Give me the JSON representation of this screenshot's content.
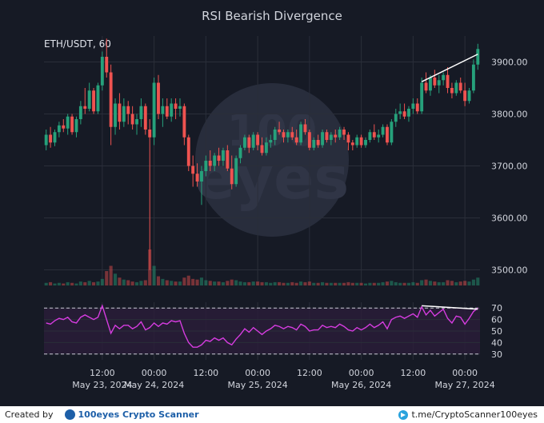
{
  "chart_data": {
    "type": "candlestick",
    "title": "RSI Bearish Divergence",
    "symbol_label": "ETH/USDT, 60",
    "price_axis": {
      "ylim": [
        3470,
        3950
      ],
      "ticks": [
        3500,
        3600,
        3700,
        3800,
        3900
      ],
      "tick_labels": [
        "3500.00",
        "3600.00",
        "3700.00",
        "3800.00",
        "3900.00"
      ]
    },
    "rsi_axis": {
      "ylim": [
        25,
        75
      ],
      "ticks": [
        30,
        40,
        50,
        60,
        70
      ],
      "tick_labels": [
        "30",
        "40",
        "50",
        "60",
        "70"
      ],
      "dashed_levels": [
        30,
        70
      ]
    },
    "x_axis": {
      "ticks": [
        {
          "index": 13,
          "time": "12:00",
          "date": "May 23, 2024"
        },
        {
          "index": 25,
          "time": "00:00",
          "date": "May 24, 2024"
        },
        {
          "index": 37,
          "time": "12:00",
          "date": ""
        },
        {
          "index": 49,
          "time": "00:00",
          "date": "May 25, 2024"
        },
        {
          "index": 61,
          "time": "12:00",
          "date": ""
        },
        {
          "index": 73,
          "time": "00:00",
          "date": "May 26, 2024"
        },
        {
          "index": 85,
          "time": "12:00",
          "date": ""
        },
        {
          "index": 97,
          "time": "00:00",
          "date": "May 27, 2024"
        }
      ]
    },
    "candles": [
      [
        3740,
        3770,
        3730,
        3760
      ],
      [
        3760,
        3775,
        3735,
        3745
      ],
      [
        3745,
        3770,
        3738,
        3765
      ],
      [
        3765,
        3785,
        3755,
        3778
      ],
      [
        3778,
        3790,
        3765,
        3772
      ],
      [
        3772,
        3800,
        3760,
        3795
      ],
      [
        3795,
        3800,
        3760,
        3765
      ],
      [
        3765,
        3795,
        3755,
        3790
      ],
      [
        3790,
        3825,
        3780,
        3815
      ],
      [
        3815,
        3850,
        3800,
        3810
      ],
      [
        3810,
        3860,
        3805,
        3845
      ],
      [
        3845,
        3850,
        3800,
        3805
      ],
      [
        3805,
        3860,
        3800,
        3855
      ],
      [
        3855,
        3920,
        3845,
        3910
      ],
      [
        3910,
        3945,
        3870,
        3880
      ],
      [
        3880,
        3895,
        3740,
        3775
      ],
      [
        3775,
        3830,
        3760,
        3820
      ],
      [
        3820,
        3840,
        3770,
        3785
      ],
      [
        3785,
        3830,
        3775,
        3815
      ],
      [
        3815,
        3825,
        3780,
        3800
      ],
      [
        3800,
        3815,
        3770,
        3780
      ],
      [
        3780,
        3800,
        3760,
        3790
      ],
      [
        3790,
        3830,
        3775,
        3815
      ],
      [
        3815,
        3820,
        3760,
        3770
      ],
      [
        3770,
        3790,
        3500,
        3755
      ],
      [
        3755,
        3870,
        3740,
        3860
      ],
      [
        3860,
        3875,
        3790,
        3800
      ],
      [
        3800,
        3830,
        3775,
        3815
      ],
      [
        3815,
        3830,
        3790,
        3795
      ],
      [
        3795,
        3830,
        3785,
        3820
      ],
      [
        3820,
        3830,
        3790,
        3810
      ],
      [
        3810,
        3830,
        3795,
        3815
      ],
      [
        3815,
        3820,
        3740,
        3755
      ],
      [
        3755,
        3760,
        3690,
        3700
      ],
      [
        3700,
        3720,
        3660,
        3685
      ],
      [
        3685,
        3705,
        3660,
        3670
      ],
      [
        3670,
        3700,
        3625,
        3690
      ],
      [
        3690,
        3720,
        3680,
        3710
      ],
      [
        3710,
        3730,
        3690,
        3700
      ],
      [
        3700,
        3725,
        3690,
        3720
      ],
      [
        3720,
        3735,
        3700,
        3710
      ],
      [
        3710,
        3735,
        3700,
        3730
      ],
      [
        3730,
        3740,
        3690,
        3695
      ],
      [
        3695,
        3720,
        3655,
        3665
      ],
      [
        3665,
        3720,
        3660,
        3715
      ],
      [
        3715,
        3740,
        3705,
        3735
      ],
      [
        3735,
        3760,
        3730,
        3755
      ],
      [
        3755,
        3760,
        3725,
        3735
      ],
      [
        3735,
        3765,
        3730,
        3760
      ],
      [
        3760,
        3765,
        3730,
        3740
      ],
      [
        3740,
        3755,
        3720,
        3725
      ],
      [
        3725,
        3755,
        3720,
        3745
      ],
      [
        3745,
        3760,
        3735,
        3750
      ],
      [
        3750,
        3775,
        3740,
        3770
      ],
      [
        3770,
        3785,
        3760,
        3765
      ],
      [
        3765,
        3770,
        3745,
        3755
      ],
      [
        3755,
        3770,
        3745,
        3765
      ],
      [
        3765,
        3775,
        3750,
        3755
      ],
      [
        3755,
        3770,
        3740,
        3745
      ],
      [
        3745,
        3785,
        3740,
        3780
      ],
      [
        3780,
        3790,
        3760,
        3765
      ],
      [
        3765,
        3770,
        3730,
        3735
      ],
      [
        3735,
        3755,
        3730,
        3750
      ],
      [
        3750,
        3760,
        3735,
        3740
      ],
      [
        3740,
        3770,
        3735,
        3765
      ],
      [
        3765,
        3770,
        3745,
        3750
      ],
      [
        3750,
        3765,
        3740,
        3760
      ],
      [
        3760,
        3770,
        3745,
        3755
      ],
      [
        3755,
        3775,
        3750,
        3770
      ],
      [
        3770,
        3775,
        3750,
        3760
      ],
      [
        3760,
        3765,
        3730,
        3745
      ],
      [
        3745,
        3750,
        3730,
        3740
      ],
      [
        3740,
        3760,
        3735,
        3755
      ],
      [
        3755,
        3760,
        3735,
        3740
      ],
      [
        3740,
        3755,
        3735,
        3750
      ],
      [
        3750,
        3770,
        3745,
        3765
      ],
      [
        3765,
        3780,
        3750,
        3755
      ],
      [
        3755,
        3770,
        3745,
        3760
      ],
      [
        3760,
        3780,
        3755,
        3775
      ],
      [
        3775,
        3780,
        3740,
        3745
      ],
      [
        3745,
        3790,
        3740,
        3785
      ],
      [
        3785,
        3810,
        3775,
        3800
      ],
      [
        3800,
        3820,
        3790,
        3805
      ],
      [
        3805,
        3820,
        3790,
        3795
      ],
      [
        3795,
        3815,
        3785,
        3810
      ],
      [
        3810,
        3830,
        3800,
        3820
      ],
      [
        3820,
        3830,
        3800,
        3805
      ],
      [
        3805,
        3870,
        3800,
        3860
      ],
      [
        3860,
        3880,
        3840,
        3845
      ],
      [
        3845,
        3875,
        3835,
        3870
      ],
      [
        3870,
        3885,
        3850,
        3855
      ],
      [
        3855,
        3875,
        3840,
        3865
      ],
      [
        3865,
        3880,
        3855,
        3875
      ],
      [
        3875,
        3890,
        3840,
        3850
      ],
      [
        3850,
        3860,
        3830,
        3840
      ],
      [
        3840,
        3865,
        3835,
        3860
      ],
      [
        3860,
        3870,
        3840,
        3845
      ],
      [
        3845,
        3860,
        3815,
        3825
      ],
      [
        3825,
        3850,
        3820,
        3845
      ],
      [
        3845,
        3905,
        3840,
        3895
      ],
      [
        3895,
        3935,
        3885,
        3925
      ]
    ],
    "volumes": [
      4,
      5,
      3,
      4,
      3,
      5,
      4,
      3,
      6,
      5,
      7,
      5,
      6,
      10,
      22,
      30,
      18,
      12,
      9,
      8,
      6,
      5,
      7,
      8,
      55,
      30,
      14,
      10,
      8,
      7,
      6,
      6,
      12,
      15,
      10,
      9,
      12,
      8,
      7,
      6,
      6,
      5,
      7,
      9,
      8,
      6,
      5,
      5,
      6,
      6,
      5,
      5,
      4,
      5,
      5,
      4,
      4,
      5,
      4,
      6,
      5,
      6,
      4,
      4,
      5,
      4,
      4,
      4,
      4,
      4,
      5,
      4,
      4,
      4,
      3,
      4,
      4,
      4,
      5,
      6,
      7,
      5,
      4,
      4,
      4,
      5,
      4,
      8,
      9,
      7,
      6,
      5,
      5,
      8,
      7,
      5,
      6,
      7,
      6,
      9,
      12
    ],
    "rsi": [
      57,
      56,
      59,
      61,
      60,
      62,
      58,
      57,
      62,
      64,
      62,
      60,
      62,
      72,
      60,
      48,
      55,
      52,
      55,
      55,
      52,
      54,
      58,
      51,
      53,
      57,
      54,
      57,
      56,
      59,
      58,
      59,
      48,
      40,
      36,
      36,
      38,
      42,
      41,
      44,
      42,
      44,
      40,
      38,
      43,
      47,
      52,
      49,
      53,
      50,
      47,
      50,
      52,
      55,
      54,
      52,
      54,
      53,
      51,
      56,
      54,
      50,
      51,
      51,
      55,
      53,
      54,
      53,
      56,
      54,
      51,
      50,
      53,
      51,
      53,
      56,
      53,
      55,
      58,
      52,
      60,
      62,
      63,
      61,
      63,
      65,
      62,
      71,
      64,
      68,
      63,
      66,
      69,
      61,
      57,
      63,
      62,
      56,
      61,
      67,
      70
    ],
    "trendlines": {
      "price": {
        "from_index": 87,
        "to_index": 100,
        "from_value": 3862,
        "to_value": 3915
      },
      "rsi": {
        "from_index": 87,
        "to_index": 100,
        "from_value": 72,
        "to_value": 69
      }
    },
    "colors": {
      "up": "#26a17b",
      "down": "#ef5350",
      "rsi": "#d63ce0",
      "trendline": "#ffffff",
      "background": "#161a25",
      "grid": "#2a2e39"
    }
  },
  "footer": {
    "created_by": "Created by",
    "brand": "100eyes Crypto Scanner",
    "link": "t.me/CryptoScanner100eyes"
  }
}
